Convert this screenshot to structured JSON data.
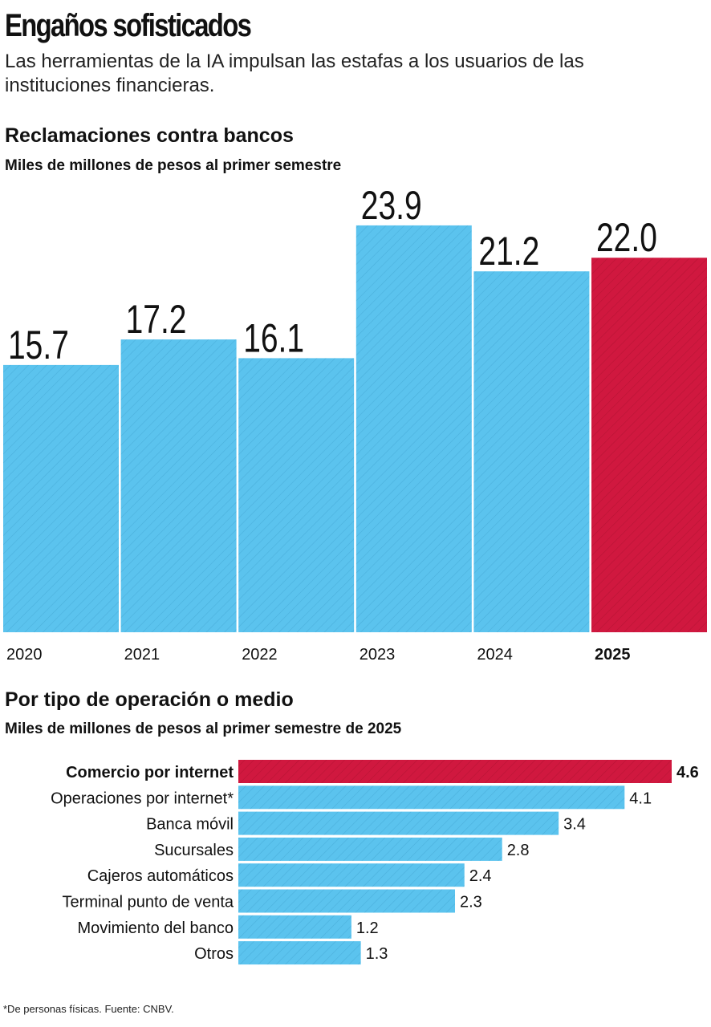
{
  "header": {
    "title": "Engaños sofisticados",
    "subtitle": "Las herramientas de la IA impulsan las estafas a los usuarios de las instituciones financieras."
  },
  "colors": {
    "bar_blue": "#5bc3ee",
    "bar_red": "#d0183f",
    "hatch": "#3d9fcc",
    "hatch_red": "#a8102f"
  },
  "chart_data": [
    {
      "type": "bar",
      "title": "Reclamaciones contra bancos",
      "subtitle": "Miles de millones de pesos al primer semestre",
      "categories": [
        "2020",
        "2021",
        "2022",
        "2023",
        "2024",
        "2025"
      ],
      "values": [
        15.7,
        17.2,
        16.1,
        23.9,
        21.2,
        22.0
      ],
      "value_labels": [
        "15.7",
        "17.2",
        "16.1",
        "23.9",
        "21.2",
        "22.0"
      ],
      "highlight": "2025",
      "ylim": [
        0,
        26.3
      ]
    },
    {
      "type": "bar",
      "orientation": "horizontal",
      "title": "Por tipo de operación o medio",
      "subtitle": "Miles de millones de pesos al primer semestre de 2025",
      "categories": [
        "Comercio por internet",
        "Operaciones por internet*",
        "Banca móvil",
        "Sucursales",
        "Cajeros automáticos",
        "Terminal punto de venta",
        "Movimiento del banco",
        "Otros"
      ],
      "values": [
        4.6,
        4.1,
        3.4,
        2.8,
        2.4,
        2.3,
        1.2,
        1.3
      ],
      "value_labels": [
        "4.6",
        "4.1",
        "3.4",
        "2.8",
        "2.4",
        "2.3",
        "1.2",
        "1.3"
      ],
      "highlight": "Comercio por internet"
    }
  ],
  "footnote": "*De personas físicas. Fuente: CNBV."
}
